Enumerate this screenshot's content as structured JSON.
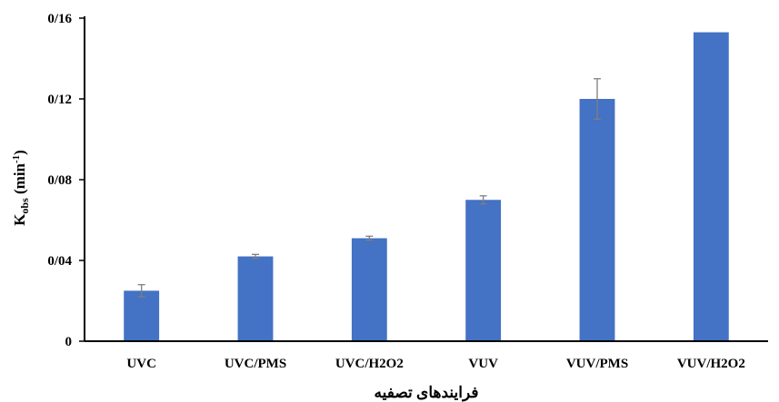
{
  "chart_data": {
    "type": "bar",
    "title": "",
    "xlabel": "فرایندهای تصفیه",
    "ylabel": {
      "main": "K",
      "sub": "obs",
      "unit_open": " (min",
      "unit_sup": "-1",
      "unit_close": ")"
    },
    "categories": [
      "UVC",
      "UVC/PMS",
      "UVC/H2O2",
      "VUV",
      "VUV/PMS",
      "VUV/H2O2"
    ],
    "values": [
      0.025,
      0.042,
      0.051,
      0.07,
      0.12,
      0.153
    ],
    "errors": [
      0.003,
      0.001,
      0.001,
      0.002,
      0.01,
      0
    ],
    "ylim": [
      0,
      0.16
    ],
    "yticks": [
      0,
      0.04,
      0.08,
      0.12,
      0.16
    ],
    "ytick_labels": [
      "0",
      "0/04",
      "0/08",
      "0/12",
      "0/16"
    ],
    "bar_color": "#4472c4",
    "error_color": "#7f7f7f",
    "grid": false,
    "legend": "none"
  }
}
